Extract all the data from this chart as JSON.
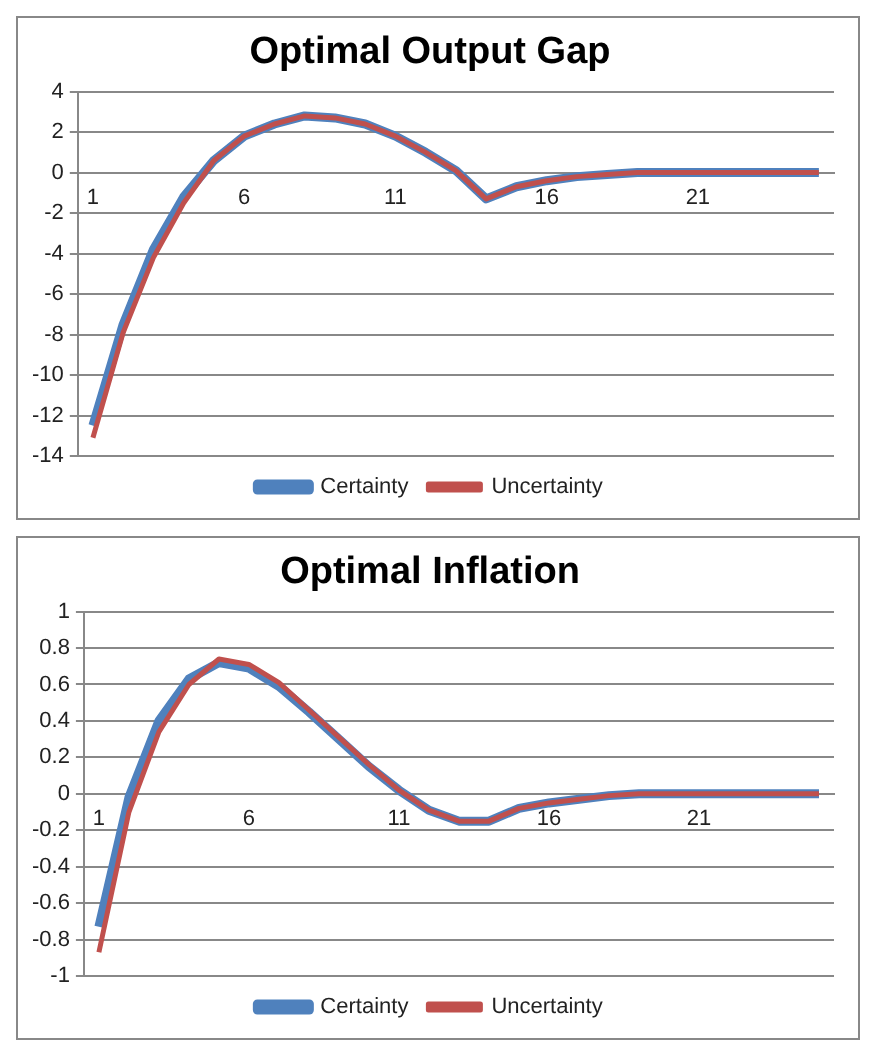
{
  "chart_data": [
    {
      "type": "line",
      "title": "Optimal Output Gap",
      "categories": [
        "1",
        null,
        null,
        null,
        null,
        "6",
        null,
        null,
        null,
        null,
        "11",
        null,
        null,
        null,
        null,
        "16",
        null,
        null,
        null,
        null,
        "21",
        null,
        null,
        null,
        null
      ],
      "series": [
        {
          "name": "Certainty",
          "color": "#4f81bd",
          "values": [
            -12.5,
            -7.5,
            -3.8,
            -1.2,
            0.6,
            1.8,
            2.4,
            2.8,
            2.7,
            2.4,
            1.8,
            1.0,
            0.1,
            -1.3,
            -0.7,
            -0.4,
            -0.2,
            -0.1,
            0,
            0,
            0,
            0,
            0,
            0,
            0
          ]
        },
        {
          "name": "Uncertainty",
          "color": "#c0504d",
          "values": [
            -13.1,
            -7.9,
            -4.2,
            -1.5,
            0.6,
            1.8,
            2.4,
            2.8,
            2.7,
            2.4,
            1.8,
            1.0,
            0.1,
            -1.3,
            -0.7,
            -0.4,
            -0.2,
            -0.1,
            0,
            0,
            0,
            0,
            0,
            0,
            0
          ]
        }
      ],
      "ylim": [
        -14,
        4
      ],
      "yticks": [
        -14,
        -12,
        -10,
        -8,
        -6,
        -4,
        -2,
        0,
        2,
        4
      ],
      "grid": "y",
      "legend": "bottom",
      "marker": "none"
    },
    {
      "type": "line",
      "title": "Optimal Inflation",
      "categories": [
        "1",
        null,
        null,
        null,
        null,
        "6",
        null,
        null,
        null,
        null,
        "11",
        null,
        null,
        null,
        null,
        "16",
        null,
        null,
        null,
        null,
        "21",
        null,
        null,
        null,
        null
      ],
      "series": [
        {
          "name": "Certainty",
          "color": "#4f81bd",
          "values": [
            -0.73,
            -0.02,
            0.4,
            0.63,
            0.72,
            0.69,
            0.59,
            0.45,
            0.3,
            0.15,
            0.02,
            -0.09,
            -0.15,
            -0.15,
            -0.08,
            -0.05,
            -0.03,
            -0.01,
            0,
            0,
            0,
            0,
            0,
            0,
            0
          ]
        },
        {
          "name": "Uncertainty",
          "color": "#c0504d",
          "values": [
            -0.87,
            -0.1,
            0.34,
            0.6,
            0.74,
            0.71,
            0.61,
            0.46,
            0.31,
            0.16,
            0.02,
            -0.09,
            -0.15,
            -0.15,
            -0.08,
            -0.05,
            -0.03,
            -0.01,
            0,
            0,
            0,
            0,
            0,
            0,
            0
          ]
        }
      ],
      "ylim": [
        -1,
        1
      ],
      "yticks": [
        -1,
        -0.8,
        -0.6,
        -0.4,
        -0.2,
        0,
        0.2,
        0.4,
        0.6,
        0.8,
        1
      ],
      "grid": "y",
      "legend": "bottom",
      "marker": "none"
    }
  ]
}
